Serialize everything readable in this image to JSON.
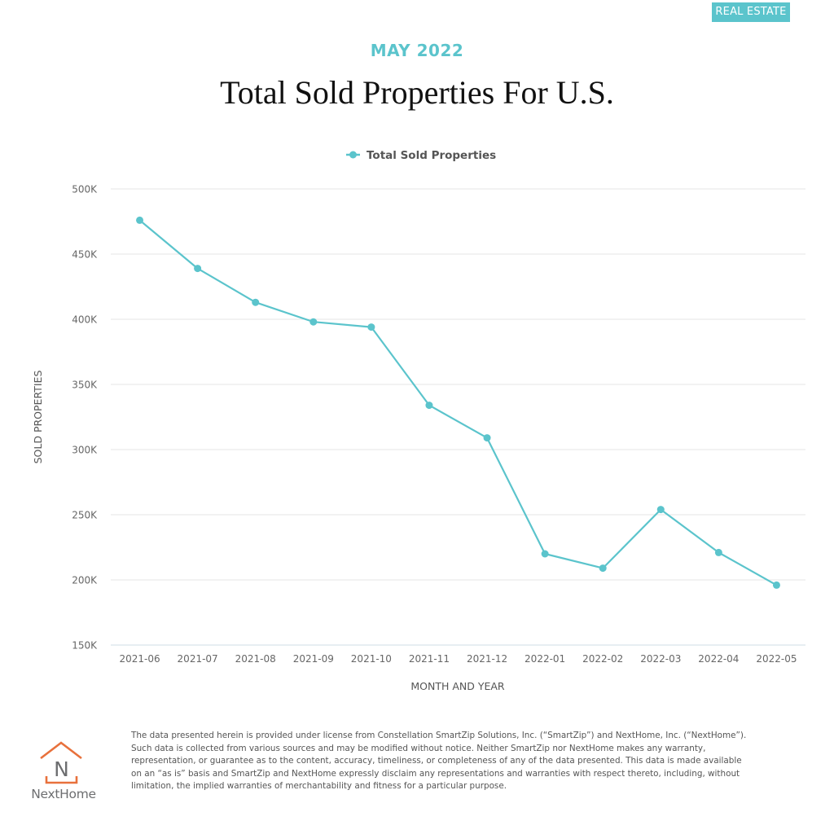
{
  "badge": "REAL ESTATE",
  "subtitle": "MAY 2022",
  "title": "Total Sold Properties For U.S.",
  "colors": {
    "accent": "#5bc4cc",
    "line": "#5bc4cc",
    "grid": "#e6e6e6",
    "axis_text": "#666666",
    "logo_orange": "#e8713c",
    "logo_gray": "#6d6e70"
  },
  "logo": {
    "icon": "house-n-icon",
    "text": "NextHome"
  },
  "disclaimer": "The data presented herein is provided under license from Constellation SmartZip Solutions, Inc. (“SmartZip”) and NextHome, Inc. (“NextHome”). Such data is collected from various sources and may be modified without notice. Neither SmartZip nor NextHome makes any warranty, representation, or guarantee as to the content, accuracy, timeliness, or completeness of any of the data presented. This data is made available on an “as is” basis and SmartZip and NextHome expressly disclaim any representations and warranties with respect thereto, including, without limitation, the implied warranties of merchantability and fitness for a particular purpose.",
  "chart_data": {
    "type": "line",
    "title": "Total Sold Properties For U.S.",
    "xlabel": "MONTH AND YEAR",
    "ylabel": "SOLD PROPERTIES",
    "legend": {
      "position": "top-center",
      "entries": [
        "Total Sold Properties"
      ]
    },
    "grid": true,
    "categories": [
      "2021-06",
      "2021-07",
      "2021-08",
      "2021-09",
      "2021-10",
      "2021-11",
      "2021-12",
      "2022-01",
      "2022-02",
      "2022-03",
      "2022-04",
      "2022-05"
    ],
    "series": [
      {
        "name": "Total Sold Properties",
        "values": [
          476000,
          439000,
          413000,
          398000,
          394000,
          334000,
          309000,
          220000,
          209000,
          254000,
          221000,
          196000
        ]
      }
    ],
    "ylim": [
      150000,
      500000
    ],
    "yticks": [
      150000,
      200000,
      250000,
      300000,
      350000,
      400000,
      450000,
      500000
    ],
    "ytick_labels": [
      "150K",
      "200K",
      "250K",
      "300K",
      "350K",
      "400K",
      "450K",
      "500K"
    ]
  }
}
